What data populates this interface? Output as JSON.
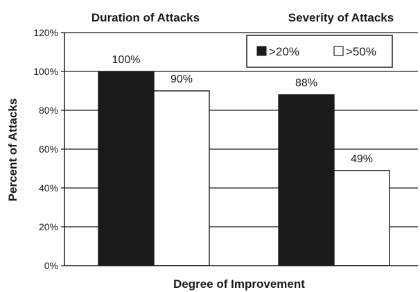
{
  "chart_data": {
    "type": "bar",
    "group_titles": [
      "Duration of Attacks",
      "Severity of Attacks"
    ],
    "series": [
      {
        "name": ">20%",
        "values": [
          100,
          88
        ],
        "labels": [
          "100%",
          "88%"
        ],
        "color": "#1a1a1a"
      },
      {
        "name": ">50%",
        "values": [
          90,
          49
        ],
        "labels": [
          "90%",
          "49%"
        ],
        "color": "#ffffff"
      }
    ],
    "xlabel": "Degree of Improvement",
    "ylabel": "Percent of Attacks",
    "ylim": [
      0,
      120
    ],
    "yticks": [
      "0%",
      "20%",
      "40%",
      "60%",
      "80%",
      "100%",
      "120%"
    ],
    "grid": true,
    "legend_position": "top-right"
  },
  "colors": {
    "axis": "#1a1a1a",
    "grid": "#1a1a1a",
    "background": "#ffffff"
  }
}
